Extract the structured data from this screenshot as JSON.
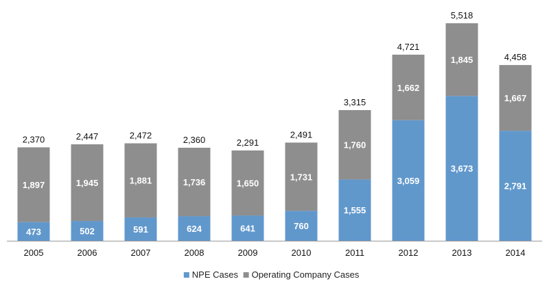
{
  "chart_data": {
    "type": "bar",
    "stacked": true,
    "categories": [
      "2005",
      "2006",
      "2007",
      "2008",
      "2009",
      "2010",
      "2011",
      "2012",
      "2013",
      "2014"
    ],
    "series": [
      {
        "name": "NPE Cases",
        "color": "#6198cc",
        "values": [
          473,
          502,
          591,
          624,
          641,
          760,
          1555,
          3059,
          3673,
          2791
        ],
        "labels": [
          "473",
          "502",
          "591",
          "624",
          "641",
          "760",
          "1,555",
          "3,059",
          "3,673",
          "2,791"
        ]
      },
      {
        "name": "Operating Company Cases",
        "color": "#8e8e8e",
        "values": [
          1897,
          1945,
          1881,
          1736,
          1650,
          1731,
          1760,
          1662,
          1845,
          1667
        ],
        "labels": [
          "1,897",
          "1,945",
          "1,881",
          "1,736",
          "1,650",
          "1,731",
          "1,760",
          "1,662",
          "1,845",
          "1,667"
        ]
      }
    ],
    "totals": [
      2370,
      2447,
      2472,
      2360,
      2291,
      2491,
      3315,
      4721,
      5518,
      4458
    ],
    "total_labels": [
      "2,370",
      "2,447",
      "2,472",
      "2,360",
      "2,291",
      "2,491",
      "3,315",
      "4,721",
      "5,518",
      "4,458"
    ],
    "title": "",
    "xlabel": "",
    "ylabel": "",
    "ylim": [
      0,
      5518
    ],
    "grid": false,
    "legend_position": "bottom"
  }
}
